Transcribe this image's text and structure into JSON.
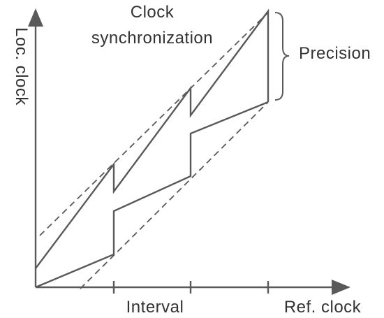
{
  "labels": {
    "y_axis": "Loc. clock",
    "x_axis": "Ref. clock",
    "interval": "Interval",
    "title_line1": "Clock",
    "title_line2": "synchronization",
    "precision": "Precision"
  },
  "colors": {
    "line": "#595959",
    "text": "#333333",
    "background": "#ffffff",
    "brace": "#5a5a5a"
  }
}
